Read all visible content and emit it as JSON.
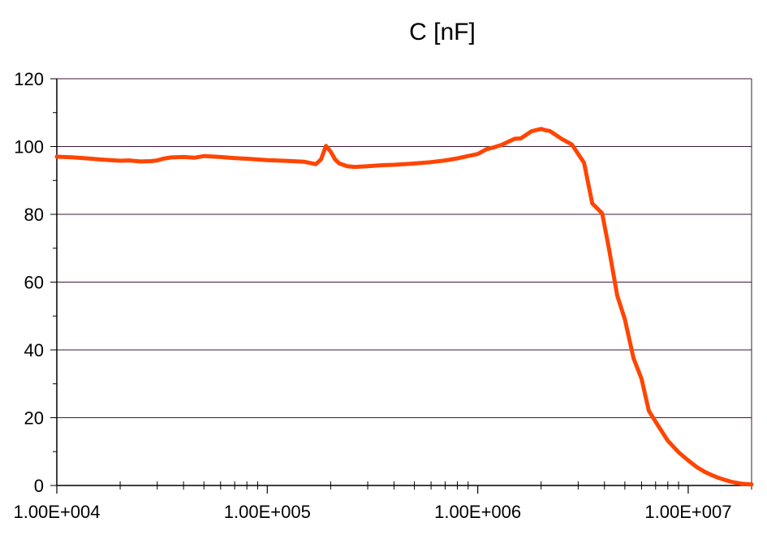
{
  "chart_data": {
    "type": "line",
    "title": "C [nF]",
    "xlabel": "",
    "ylabel": "",
    "x_scale": "log",
    "xlim": [
      10000,
      20000000
    ],
    "ylim": [
      0,
      120
    ],
    "x_tick_labels": [
      "1.00E+004",
      "1.00E+005",
      "1.00E+006",
      "1.00E+007"
    ],
    "x_tick_values": [
      10000,
      100000,
      1000000,
      10000000
    ],
    "y_ticks": [
      0,
      20,
      40,
      60,
      80,
      100,
      120
    ],
    "grid": "horizontal",
    "legend": "none",
    "series": [
      {
        "color": "#ff4500",
        "x": [
          10000,
          12000,
          14000,
          16000,
          18000,
          20000,
          22000,
          25000,
          28000,
          30000,
          32000,
          35000,
          40000,
          45000,
          50000,
          60000,
          70000,
          80000,
          100000,
          120000,
          150000,
          170000,
          180000,
          190000,
          200000,
          210000,
          220000,
          240000,
          260000,
          300000,
          350000,
          400000,
          500000,
          600000,
          700000,
          800000,
          900000,
          1000000,
          1100000,
          1200000,
          1300000,
          1500000,
          1600000,
          1800000,
          2000000,
          2100000,
          2200000,
          2500000,
          2800000,
          3200000,
          3500000,
          3900000,
          4200000,
          4600000,
          5000000,
          5500000,
          6000000,
          6500000,
          7000000,
          8000000,
          9000000,
          10000000,
          11000000,
          12000000,
          13000000,
          14000000,
          15000000,
          16000000,
          17000000,
          18000000,
          20000000
        ],
        "y": [
          97,
          96.8,
          96.5,
          96.2,
          96,
          95.8,
          95.9,
          95.6,
          95.7,
          95.9,
          96.4,
          96.8,
          96.9,
          96.7,
          97.2,
          96.9,
          96.6,
          96.4,
          96,
          95.8,
          95.5,
          94.8,
          96.2,
          100.2,
          98.5,
          96.2,
          95,
          94.2,
          94,
          94.2,
          94.5,
          94.6,
          95,
          95.4,
          95.9,
          96.5,
          97.2,
          97.8,
          99.2,
          99.8,
          100.5,
          102.3,
          102.4,
          104.5,
          105.2,
          104.8,
          104.6,
          102.3,
          100.6,
          95.2,
          83.2,
          80.3,
          70,
          56,
          49,
          37.5,
          31.5,
          22,
          18.8,
          13.2,
          9.8,
          7.4,
          5.4,
          4,
          3,
          2.2,
          1.6,
          1.1,
          0.8,
          0.5,
          0.3
        ]
      }
    ]
  }
}
